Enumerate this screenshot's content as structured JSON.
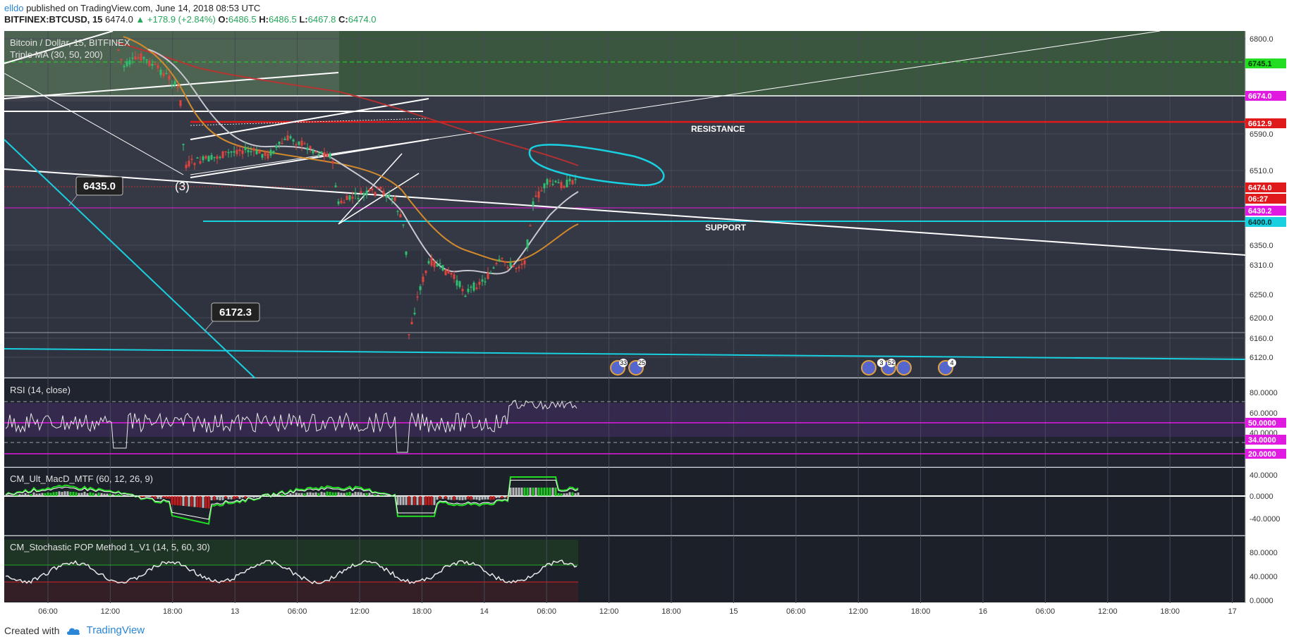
{
  "header": {
    "author": "elldo",
    "published_text": " published on TradingView.com, June 14, 2018 08:53 UTC",
    "symbol": "BITFINEX:BTCUSD, 15",
    "last": "6474.0",
    "change": "+178.9 (+2.84%)",
    "o_label": "O:",
    "o": "6486.5",
    "h_label": "H:",
    "h": "6486.5",
    "l_label": "L:",
    "l": "6467.8",
    "c_label": "C:",
    "c": "6474.0"
  },
  "main_pane": {
    "legend_line1": "Bitcoin / Dollar, 15, BITFINEX",
    "legend_line2": "Triple MA (30, 50, 200)",
    "annotations": {
      "resistance": "RESISTANCE",
      "support": "SUPPORT",
      "callout_1": "6435.0",
      "callout_2": "6172.3",
      "wave_label": "(3)"
    },
    "price_axis": [
      "6800.0",
      "6590.0",
      "6510.0",
      "6350.0",
      "6310.0",
      "6250.0",
      "6200.0",
      "6160.0",
      "6120.0"
    ],
    "price_tags": [
      {
        "text": "6745.1",
        "color": "#22dd22",
        "text_color": "#003300"
      },
      {
        "text": "6674.0",
        "color": "#e01ae0",
        "text_color": "#ffffff"
      },
      {
        "text": "6612.9",
        "color": "#e01a1a",
        "text_color": "#ffffff"
      },
      {
        "text": "6474.0",
        "color": "#e01a1a",
        "text_color": "#ffffff"
      },
      {
        "text": "06:27",
        "color": "#e01a1a",
        "text_color": "#ffffff"
      },
      {
        "text": "6430.2",
        "color": "#e01ae0",
        "text_color": "#ffffff"
      },
      {
        "text": "6400.0",
        "color": "#19d0e0",
        "text_color": "#003333"
      }
    ],
    "event_badges": [
      "33",
      "25",
      "3",
      "52",
      "4"
    ]
  },
  "rsi_pane": {
    "legend": "RSI (14, close)",
    "axis": [
      "80.0000",
      "60.0000",
      "40.0000"
    ],
    "tags": [
      "50.0000",
      "34.0000",
      "20.0000"
    ]
  },
  "macd_pane": {
    "legend": "CM_Ult_MacD_MTF (60, 12, 26, 9)",
    "axis": [
      "40.0000",
      "0.0000",
      "-40.0000"
    ]
  },
  "stoch_pane": {
    "legend": "CM_Stochastic POP Method 1_V1 (14, 5, 60, 30)",
    "axis": [
      "80.0000",
      "40.0000",
      "0.0000"
    ]
  },
  "time_axis": [
    "06:00",
    "12:00",
    "18:00",
    "13",
    "06:00",
    "12:00",
    "18:00",
    "14",
    "06:00",
    "12:00",
    "18:00",
    "15",
    "06:00",
    "12:00",
    "18:00",
    "16",
    "06:00",
    "12:00",
    "18:00",
    "17"
  ],
  "footer": {
    "created_with": "Created with",
    "brand": "TradingView"
  },
  "colors": {
    "background": "#2a2e39",
    "resistance": "#e01a1a",
    "support": "#19d0e0",
    "magenta_level": "#e01ae0",
    "green_zone": "#22dd22"
  }
}
